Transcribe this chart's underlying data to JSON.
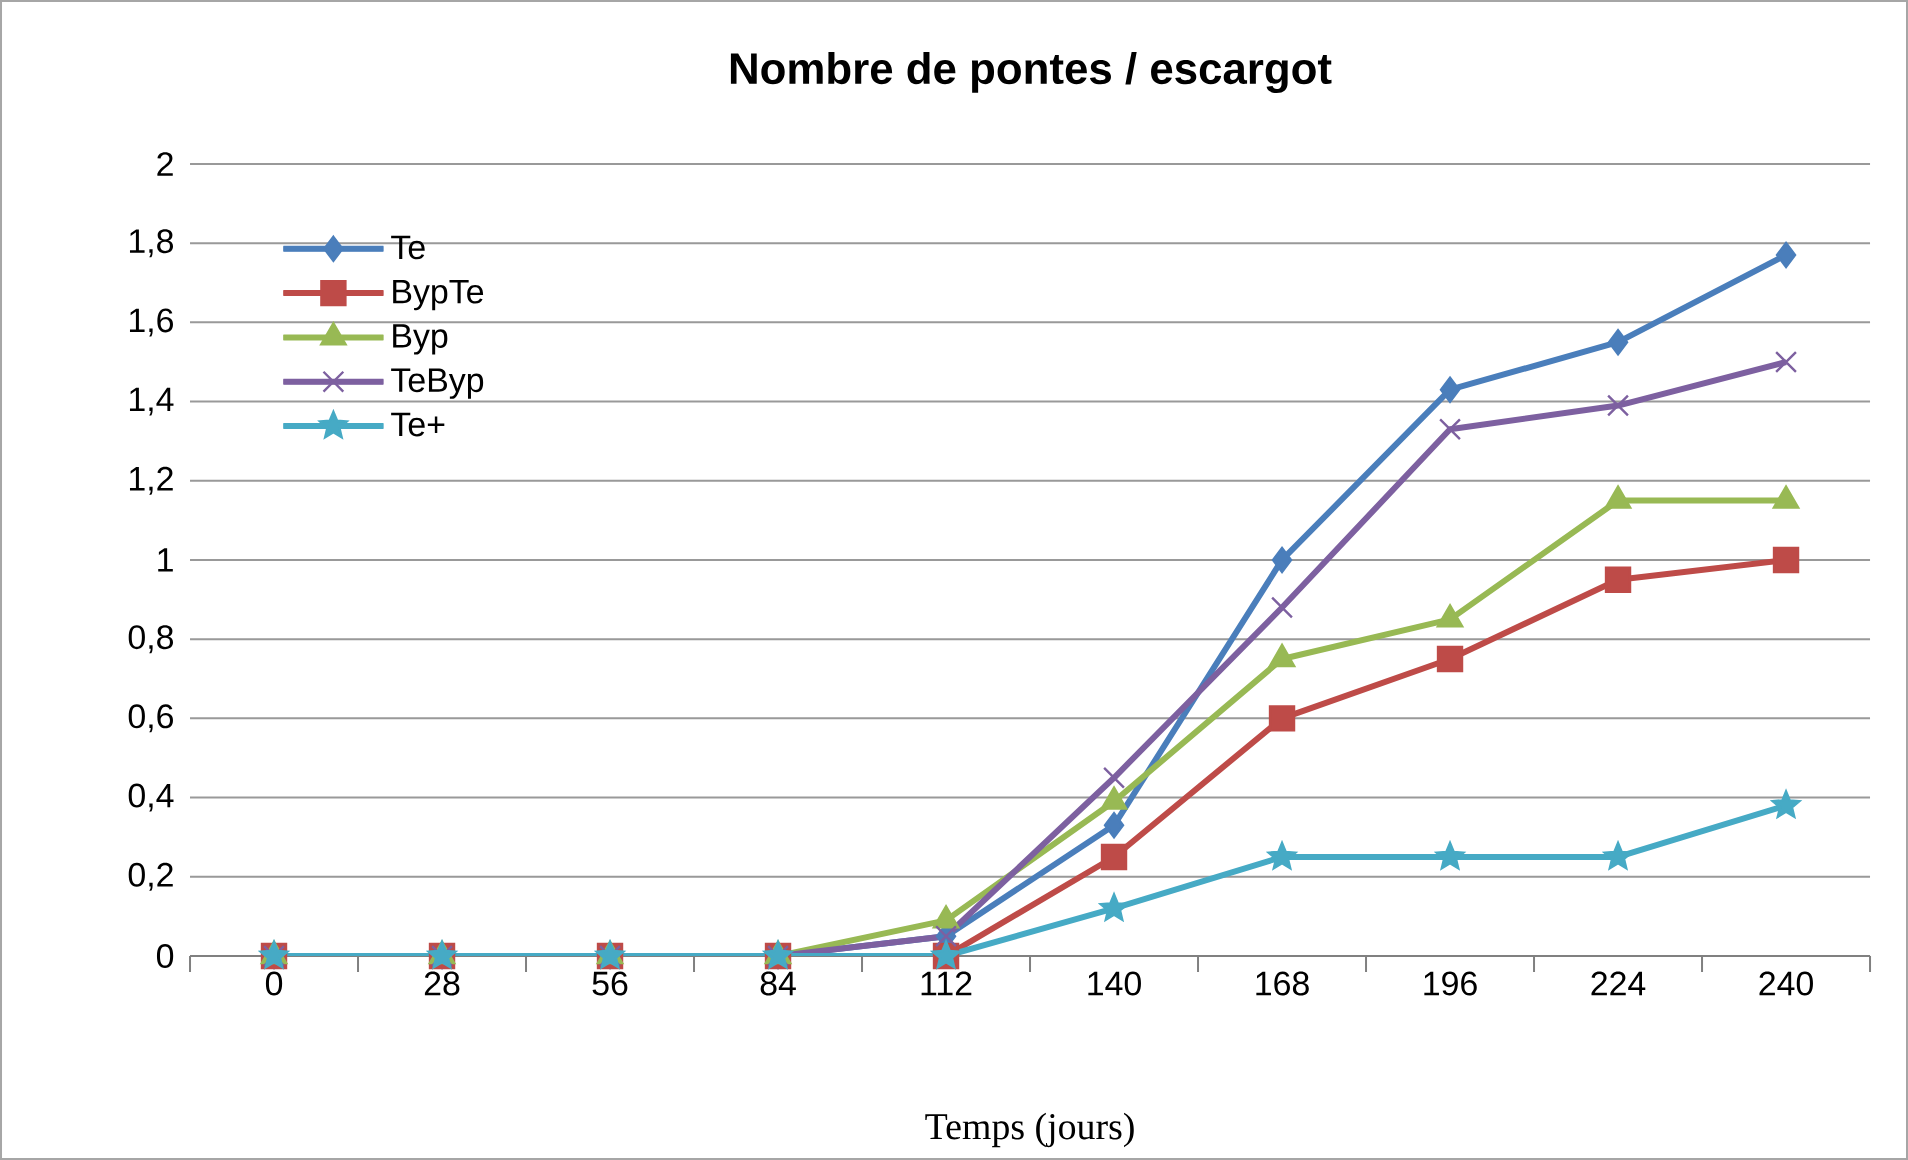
{
  "chart_data": {
    "type": "line",
    "title": "Nombre de pontes / escargot",
    "xlabel": "Temps (jours)",
    "categories": [
      "0",
      "28",
      "56",
      "84",
      "112",
      "140",
      "168",
      "196",
      "224",
      "240"
    ],
    "series": [
      {
        "name": "Te",
        "color": "#4a7ebb",
        "marker": "diamond",
        "values": [
          0,
          0,
          0,
          0,
          0.05,
          0.33,
          1.0,
          1.43,
          1.55,
          1.77
        ]
      },
      {
        "name": "BypTe",
        "color": "#be4b48",
        "marker": "square",
        "values": [
          0,
          0,
          0,
          0,
          0,
          0.25,
          0.6,
          0.75,
          0.95,
          1.0
        ]
      },
      {
        "name": "Byp",
        "color": "#98b954",
        "marker": "triangle",
        "values": [
          0,
          0,
          0,
          0,
          0.09,
          0.39,
          0.75,
          0.85,
          1.15,
          1.15
        ]
      },
      {
        "name": "TeByp",
        "color": "#7d60a0",
        "marker": "cross",
        "values": [
          0,
          0,
          0,
          0,
          0.05,
          0.45,
          0.88,
          1.33,
          1.39,
          1.5
        ]
      },
      {
        "name": "Te+",
        "color": "#46aac5",
        "marker": "star",
        "values": [
          0,
          0,
          0,
          0,
          0,
          0.12,
          0.25,
          0.25,
          0.25,
          0.38
        ]
      }
    ],
    "ylim": [
      0,
      2
    ],
    "yticks": [
      0,
      {
        "value": 0.2,
        "label": "0,2"
      },
      {
        "value": 0.4,
        "label": "0,4"
      },
      {
        "value": 0.6,
        "label": "0,6"
      },
      {
        "value": 0.8,
        "label": "0,8"
      },
      1,
      {
        "value": 1.2,
        "label": "1,2"
      },
      {
        "value": 1.4,
        "label": "1,4"
      },
      {
        "value": 1.6,
        "label": "1,6"
      },
      {
        "value": 1.8,
        "label": "1,8"
      },
      2
    ],
    "grid": "y",
    "legend": "top left"
  }
}
